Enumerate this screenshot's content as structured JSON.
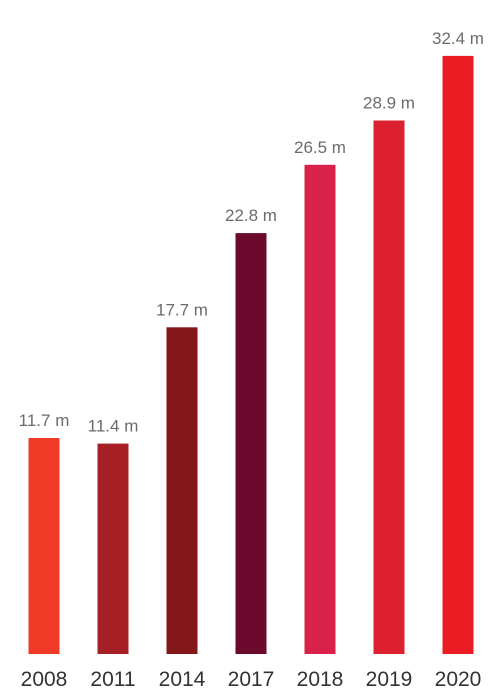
{
  "chart_data": {
    "type": "bar",
    "title": "",
    "xlabel": "",
    "ylabel": "",
    "categories": [
      "2008",
      "2011",
      "2014",
      "2017",
      "2018",
      "2019",
      "2020"
    ],
    "values": [
      11.7,
      11.4,
      17.7,
      22.8,
      26.5,
      28.9,
      32.4
    ],
    "value_labels": [
      "11.7 m",
      "11.4 m",
      "17.7 m",
      "22.8 m",
      "26.5 m",
      "28.9 m",
      "32.4 m"
    ],
    "unit": "m",
    "ylim": [
      0,
      34
    ],
    "grid": false,
    "legend": "none",
    "bar_colors": [
      "#ef3a26",
      "#a51f24",
      "#831719",
      "#6b0a2c",
      "#d9214a",
      "#dc2030",
      "#ec1c24"
    ],
    "value_label_color": "#6b6b6b",
    "tick_label_color": "#333333"
  }
}
